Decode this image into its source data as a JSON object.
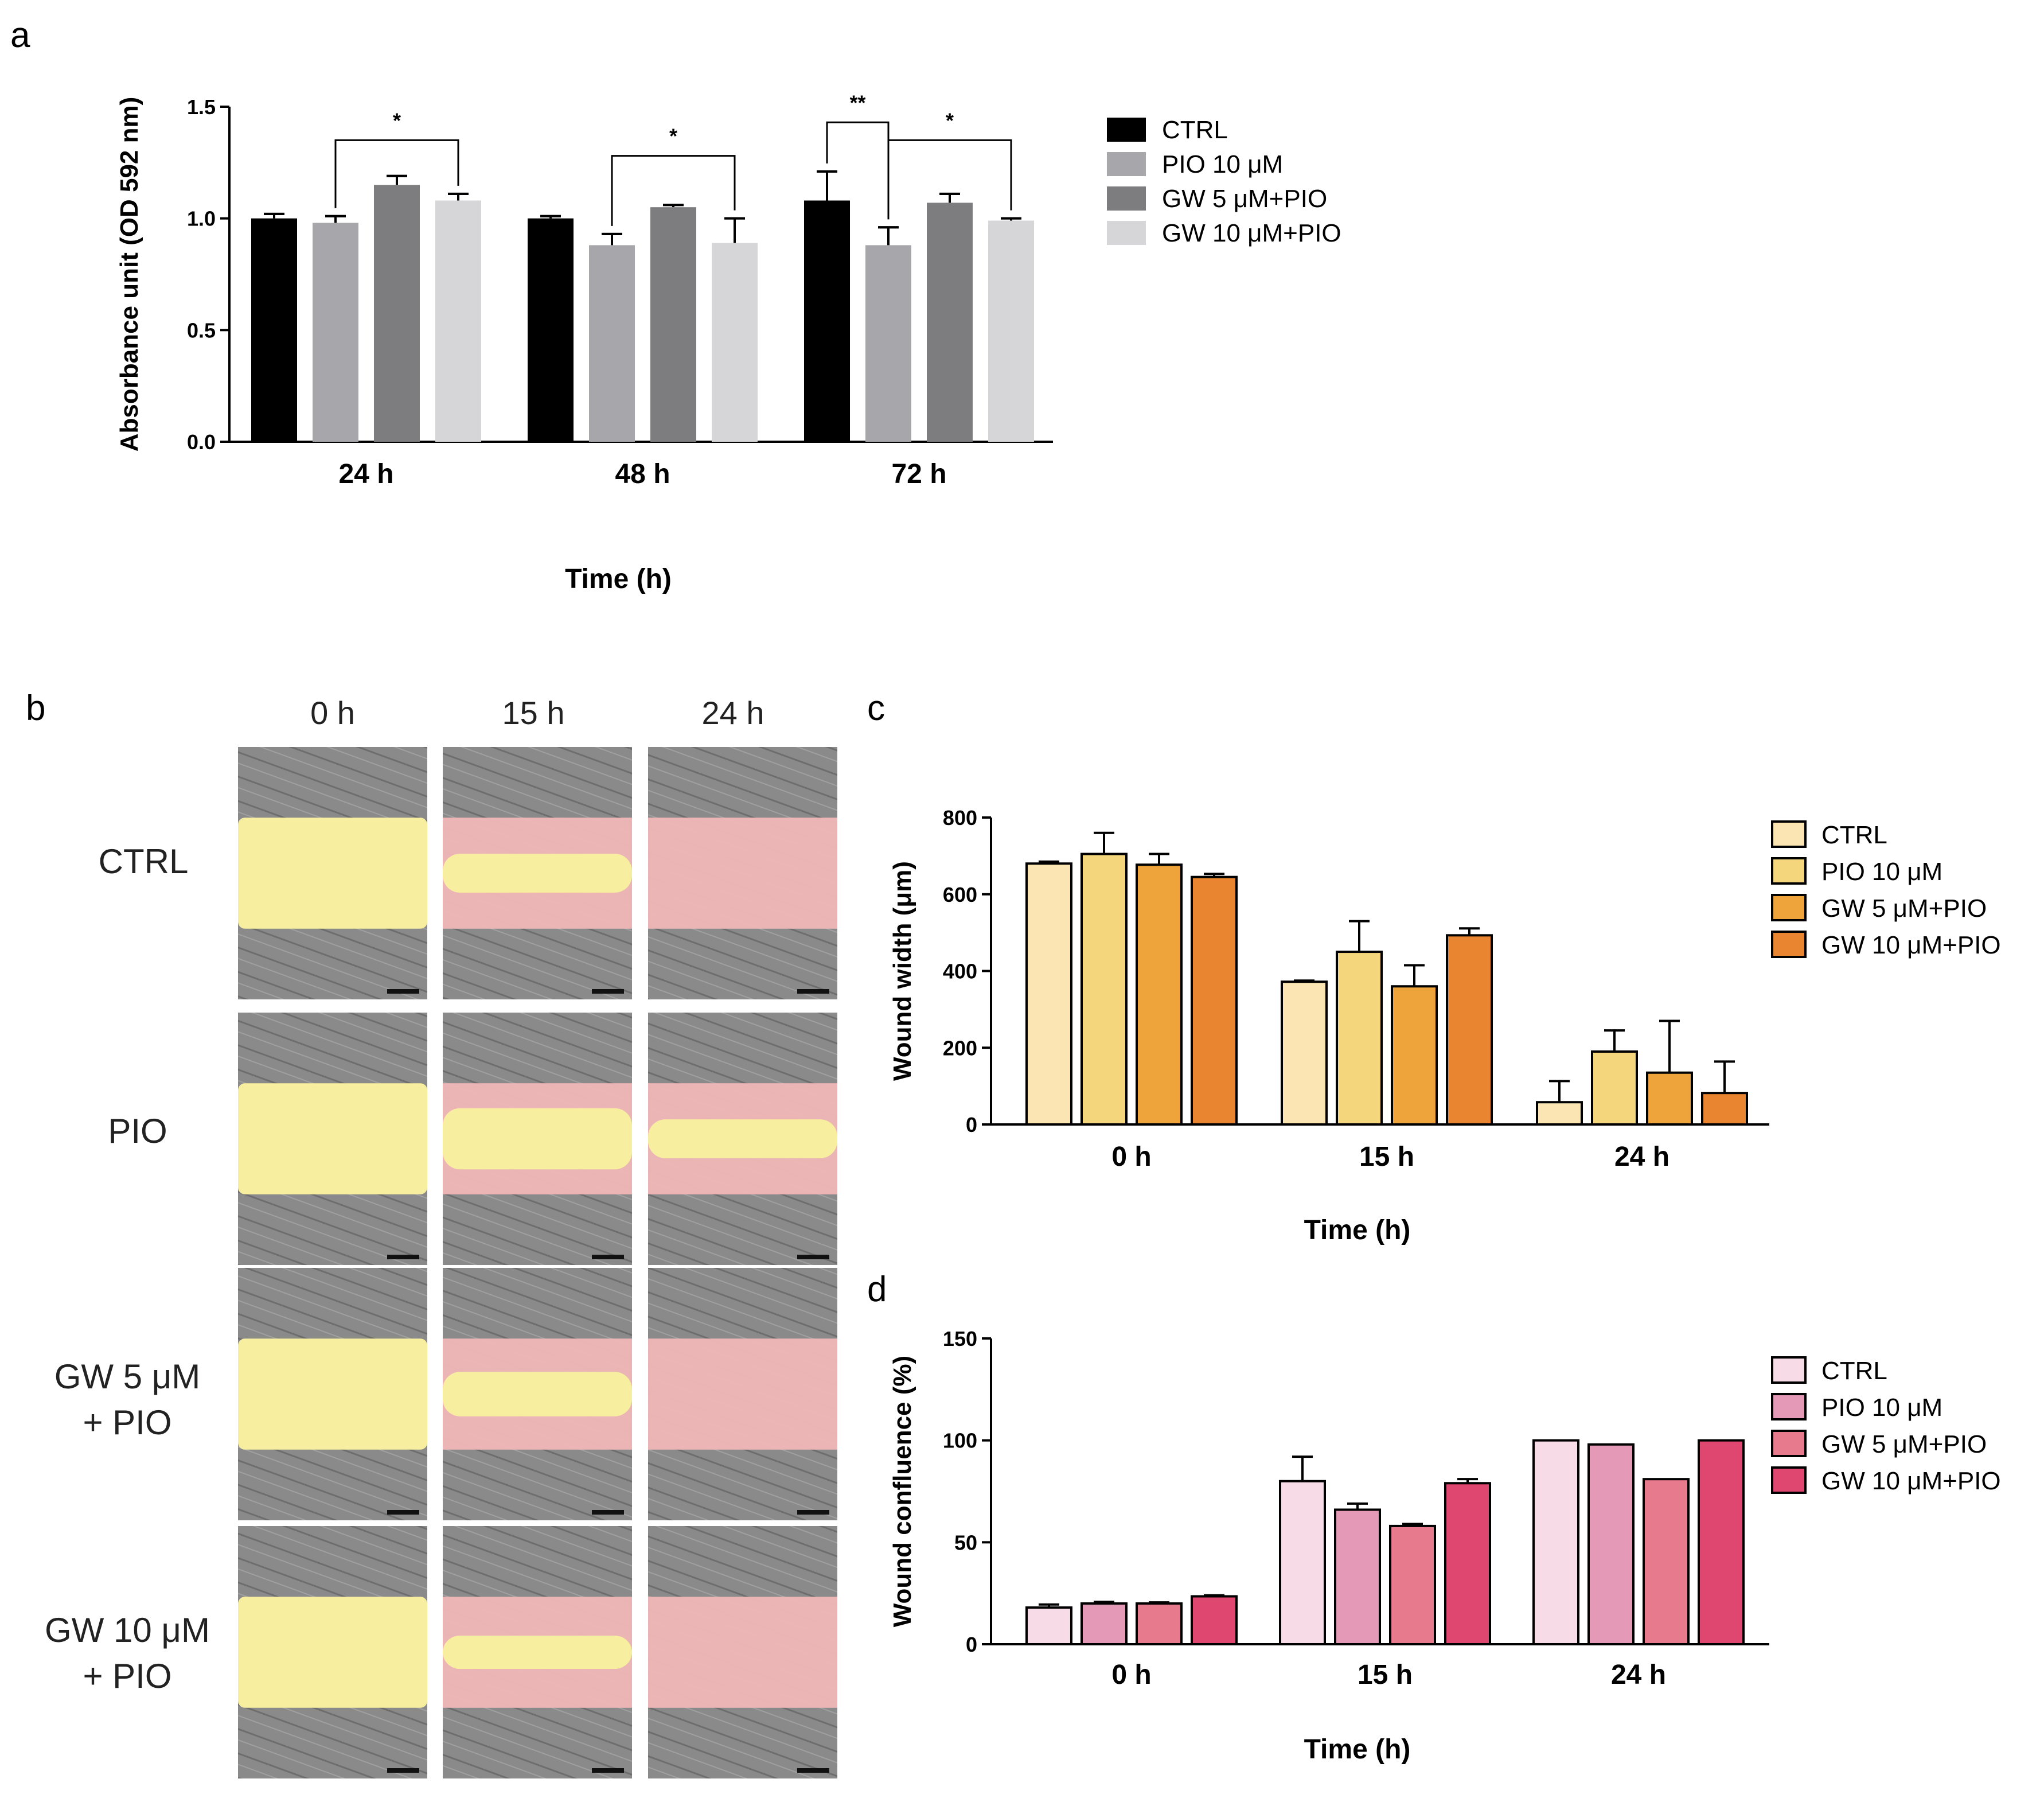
{
  "panels": {
    "a": "a",
    "b": "b",
    "c": "c",
    "d": "d"
  },
  "colors": {
    "a": [
      "#000000",
      "#a7a7ab",
      "#7d7d7f",
      "#d6d6d8"
    ],
    "c": [
      "#fbe6b3",
      "#f4d67c",
      "#eea43a",
      "#e98430"
    ],
    "d": [
      "#f7dbe6",
      "#e49ab6",
      "#e77a8d",
      "#e04770"
    ],
    "wound_yellow": "#f8eea0",
    "wound_pink": "#f1b7b7",
    "cells_gray": "#8a8a8a"
  },
  "chart_data": [
    {
      "id": "a",
      "type": "bar",
      "title": "",
      "xlabel": "Time (h)",
      "ylabel": "Absorbance unit (OD 592 nm)",
      "ylim": [
        0,
        1.5
      ],
      "yticks": [
        "0.0",
        "0.5",
        "1.0",
        "1.5"
      ],
      "categories": [
        "24 h",
        "48 h",
        "72 h"
      ],
      "series": [
        {
          "name": "CTRL",
          "values": [
            1.0,
            1.0,
            1.08
          ],
          "errors": [
            0.02,
            0.01,
            0.13
          ]
        },
        {
          "name": "PIO 10 μM",
          "values": [
            0.98,
            0.88,
            0.88
          ],
          "errors": [
            0.03,
            0.05,
            0.08
          ]
        },
        {
          "name": "GW 5 μM+PIO",
          "values": [
            1.15,
            1.05,
            1.07
          ],
          "errors": [
            0.04,
            0.01,
            0.04
          ]
        },
        {
          "name": "GW 10 μM+PIO",
          "values": [
            1.08,
            0.89,
            0.99
          ],
          "errors": [
            0.03,
            0.11,
            0.01
          ]
        }
      ],
      "annotations": [
        {
          "text": "*",
          "group": 0,
          "from": 1,
          "to": 3,
          "y": 1.35
        },
        {
          "text": "*",
          "group": 1,
          "from": 1,
          "to": 3,
          "y": 1.28
        },
        {
          "text": "**",
          "group": 2,
          "from": 0,
          "to": 1,
          "y": 1.43
        },
        {
          "text": "*",
          "group": 2,
          "from": 1,
          "to": 3,
          "y": 1.35
        }
      ],
      "legend": "right"
    },
    {
      "id": "c",
      "type": "bar",
      "title": "",
      "xlabel": "Time (h)",
      "ylabel": "Wound width (μm)",
      "ylim": [
        0,
        800
      ],
      "yticks": [
        "0",
        "200",
        "400",
        "600",
        "800"
      ],
      "categories": [
        "0 h",
        "15 h",
        "24 h"
      ],
      "series": [
        {
          "name": "CTRL",
          "values": [
            680,
            372,
            58
          ],
          "errors": [
            5,
            3,
            55
          ]
        },
        {
          "name": "PIO 10 μM",
          "values": [
            705,
            450,
            190
          ],
          "errors": [
            55,
            80,
            55
          ]
        },
        {
          "name": "GW 5 μM+PIO",
          "values": [
            677,
            360,
            135
          ],
          "errors": [
            28,
            55,
            135
          ]
        },
        {
          "name": "GW 10 μM+PIO",
          "values": [
            645,
            493,
            82
          ],
          "errors": [
            8,
            18,
            82
          ]
        }
      ],
      "legend": "right"
    },
    {
      "id": "d",
      "type": "bar",
      "title": "",
      "xlabel": "Time (h)",
      "ylabel": "Wound confluence (%)",
      "ylim": [
        0,
        150
      ],
      "yticks": [
        "0",
        "50",
        "100",
        "150"
      ],
      "categories": [
        "0 h",
        "15 h",
        "24 h"
      ],
      "series": [
        {
          "name": "CTRL",
          "values": [
            18,
            80,
            100
          ],
          "errors": [
            1.5,
            12,
            0
          ]
        },
        {
          "name": "PIO 10 μM",
          "values": [
            20,
            66,
            98
          ],
          "errors": [
            0.8,
            3,
            0
          ]
        },
        {
          "name": "GW 5 μM+PIO",
          "values": [
            20,
            58,
            81
          ],
          "errors": [
            0.5,
            1,
            0
          ]
        },
        {
          "name": "GW 10 μM+PIO",
          "values": [
            23.5,
            79,
            100
          ],
          "errors": [
            0.5,
            2,
            0
          ]
        }
      ],
      "legend": "right"
    }
  ],
  "panel_b": {
    "columns": [
      "0 h",
      "15 h",
      "24 h"
    ],
    "rows": [
      {
        "line1": "CTRL",
        "line2": ""
      },
      {
        "line1": "PIO",
        "line2": ""
      },
      {
        "line1": "GW 5 μM",
        "line2": "+ PIO"
      },
      {
        "line1": "GW 10 μM",
        "line2": "+ PIO"
      }
    ]
  }
}
